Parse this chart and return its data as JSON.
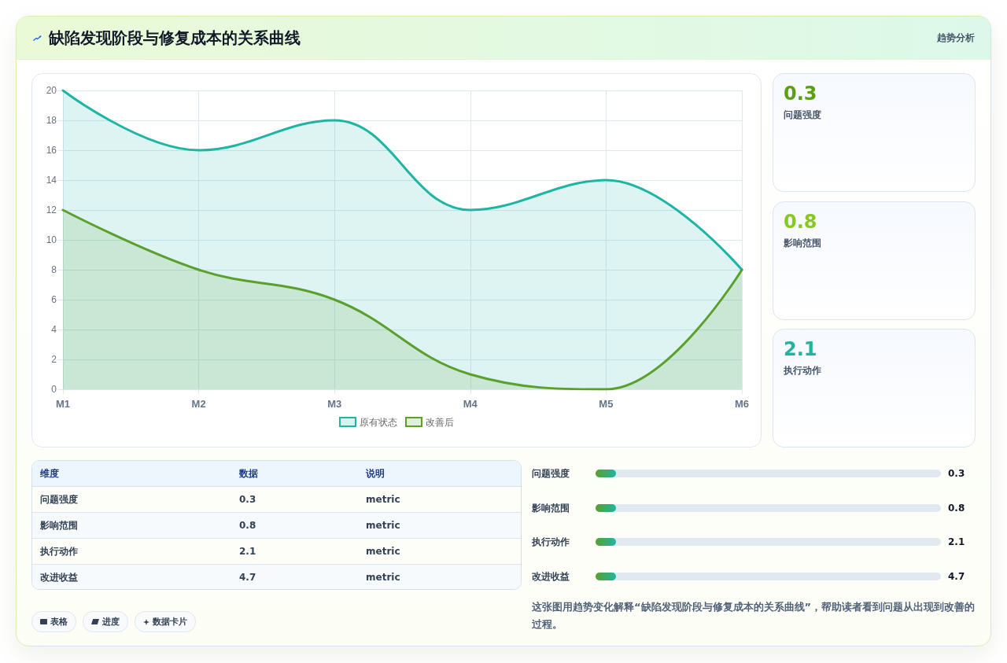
{
  "chart_data": [
    {
      "type": "other",
      "title": "缺陷发现阶段与修复成本的关系曲线",
      "subtitle": "趋势分析"
    },
    {
      "type": "area",
      "categories": [
        "M1",
        "M2",
        "M3",
        "M4",
        "M5",
        "M6"
      ],
      "series": [
        {
          "name": "原有状态",
          "color": "#1fb5a5",
          "values": [
            20,
            16,
            18,
            12,
            14,
            8
          ]
        },
        {
          "name": "改善后",
          "color": "#5aa02c",
          "values": [
            12,
            8,
            6,
            1,
            0,
            8
          ]
        }
      ],
      "ylim": [
        0,
        20
      ],
      "yticks": [
        0,
        2,
        4,
        6,
        8,
        10,
        12,
        14,
        16,
        18,
        20
      ],
      "grid": true,
      "legend": "bottom"
    },
    {
      "type": "other",
      "categories": [
        "问题强度",
        "影响范围",
        "执行动作"
      ],
      "values": [
        0.3,
        0.8,
        2.1
      ],
      "data_labels": true
    },
    {
      "type": "other",
      "categories": [
        "问题强度",
        "影响范围",
        "执行动作",
        "改进收益"
      ],
      "values": [
        0.3,
        0.8,
        2.1,
        4.7
      ],
      "data_labels": true,
      "annotations": [
        "维度",
        "数据",
        "说明",
        "metric",
        "metric",
        "metric",
        "metric"
      ]
    },
    {
      "type": "other",
      "categories": [
        "问题强度",
        "影响范围",
        "执行动作",
        "改进收益"
      ],
      "values": [
        0.3,
        0.8,
        2.1,
        4.7
      ],
      "data_labels": true,
      "annotations": [
        "这张图用趋势变化解释“缺陷发现阶段与修复成本的关系曲线”，帮助读者看到问题从出现到改善的过程。"
      ]
    },
    {
      "type": "other",
      "annotations": [
        "表格",
        "进度",
        "数据卡片"
      ]
    }
  ]
}
